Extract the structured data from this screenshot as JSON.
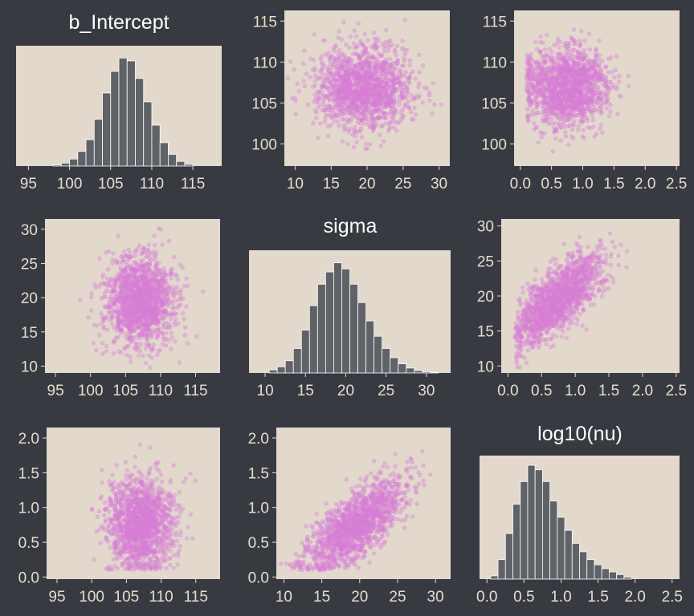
{
  "colors": {
    "background": "#373a40",
    "panel": "#e2d8cc",
    "histogram_bar": "#5f6368",
    "histogram_outline": "#ffffff",
    "scatter_point": "#d87ed6",
    "tick_text": "#e6ddd0",
    "title_text": "#ffffff"
  },
  "chart_data": [
    {
      "id": "p11",
      "type": "bar",
      "title": "b_Intercept",
      "x_ticks": [
        95,
        100,
        105,
        110,
        115
      ],
      "xlim": [
        93.5,
        118.5
      ],
      "grid": false,
      "bins": [
        {
          "x": 98.5,
          "count": 2
        },
        {
          "x": 99.5,
          "count": 5
        },
        {
          "x": 100.5,
          "count": 12
        },
        {
          "x": 101.5,
          "count": 25
        },
        {
          "x": 102.5,
          "count": 45
        },
        {
          "x": 103.5,
          "count": 80
        },
        {
          "x": 104.5,
          "count": 125
        },
        {
          "x": 105.5,
          "count": 162
        },
        {
          "x": 106.5,
          "count": 185
        },
        {
          "x": 107.5,
          "count": 180
        },
        {
          "x": 108.5,
          "count": 150
        },
        {
          "x": 109.5,
          "count": 110
        },
        {
          "x": 110.5,
          "count": 70
        },
        {
          "x": 111.5,
          "count": 40
        },
        {
          "x": 112.5,
          "count": 20
        },
        {
          "x": 113.5,
          "count": 8
        },
        {
          "x": 114.5,
          "count": 3
        }
      ],
      "count_max": 195
    },
    {
      "id": "p12",
      "type": "scatter",
      "x": "sigma",
      "y": "b_Intercept",
      "x_ticks": [
        10,
        15,
        20,
        25,
        30
      ],
      "y_ticks": [
        100,
        105,
        110,
        115
      ],
      "xlim": [
        8.5,
        31.5
      ],
      "ylim": [
        97.3,
        116.3
      ],
      "x_mean": 19.5,
      "x_sd": 3.2,
      "y_mean": 107,
      "y_sd": 2.4,
      "correlation": 0.0,
      "n": 1500,
      "seed": 7
    },
    {
      "id": "p13",
      "type": "scatter",
      "x": "log10(nu)",
      "y": "b_Intercept",
      "x_ticks": [
        0.0,
        0.5,
        1.0,
        1.5,
        2.0,
        2.5
      ],
      "y_ticks": [
        100,
        105,
        110,
        115
      ],
      "xlim": [
        -0.1,
        2.55
      ],
      "ylim": [
        97.3,
        116.3
      ],
      "x_mean": 0.75,
      "x_sd": 0.33,
      "x_min": 0.1,
      "y_mean": 107,
      "y_sd": 2.4,
      "correlation": 0.0,
      "n": 1500,
      "seed": 11
    },
    {
      "id": "p21",
      "type": "scatter",
      "x": "b_Intercept",
      "y": "sigma",
      "x_ticks": [
        95,
        100,
        105,
        110,
        115
      ],
      "y_ticks": [
        10,
        15,
        20,
        25,
        30
      ],
      "xlim": [
        93.5,
        118.5
      ],
      "ylim": [
        9.0,
        31.5
      ],
      "x_mean": 107,
      "x_sd": 2.4,
      "y_mean": 19.5,
      "y_sd": 3.2,
      "correlation": 0.0,
      "n": 1500,
      "seed": 23
    },
    {
      "id": "p22",
      "type": "bar",
      "title": "sigma",
      "x_ticks": [
        10,
        15,
        20,
        25,
        30
      ],
      "xlim": [
        8.0,
        33.0
      ],
      "grid": false,
      "bins": [
        {
          "x": 11,
          "count": 5
        },
        {
          "x": 12,
          "count": 10
        },
        {
          "x": 13,
          "count": 20
        },
        {
          "x": 14,
          "count": 40
        },
        {
          "x": 15,
          "count": 70
        },
        {
          "x": 16,
          "count": 110
        },
        {
          "x": 17,
          "count": 145
        },
        {
          "x": 18,
          "count": 165
        },
        {
          "x": 19,
          "count": 180
        },
        {
          "x": 20,
          "count": 170
        },
        {
          "x": 21,
          "count": 145
        },
        {
          "x": 22,
          "count": 115
        },
        {
          "x": 23,
          "count": 85
        },
        {
          "x": 24,
          "count": 60
        },
        {
          "x": 25,
          "count": 40
        },
        {
          "x": 26,
          "count": 25
        },
        {
          "x": 27,
          "count": 15
        },
        {
          "x": 28,
          "count": 8
        },
        {
          "x": 29,
          "count": 4
        },
        {
          "x": 30,
          "count": 2
        },
        {
          "x": 31,
          "count": 1
        }
      ],
      "count_max": 190
    },
    {
      "id": "p23",
      "type": "scatter",
      "x": "log10(nu)",
      "y": "sigma",
      "x_ticks": [
        0.0,
        0.5,
        1.0,
        1.5,
        2.0,
        2.5
      ],
      "y_ticks": [
        10,
        15,
        20,
        25,
        30
      ],
      "xlim": [
        -0.1,
        2.55
      ],
      "ylim": [
        9.0,
        31.0
      ],
      "x_mean": 0.75,
      "x_sd": 0.33,
      "x_min": 0.1,
      "y_mean": 19.5,
      "y_sd": 3.2,
      "correlation": 0.72,
      "n": 1500,
      "seed": 31
    },
    {
      "id": "p31",
      "type": "scatter",
      "x": "b_Intercept",
      "y": "log10(nu)",
      "x_ticks": [
        95,
        100,
        105,
        110,
        115
      ],
      "y_ticks": [
        0.0,
        0.5,
        1.0,
        1.5,
        2.0
      ],
      "xlim": [
        93.5,
        118.5
      ],
      "ylim": [
        -0.03,
        2.15
      ],
      "x_mean": 107,
      "x_sd": 2.4,
      "y_mean": 0.75,
      "y_sd": 0.33,
      "y_min": 0.1,
      "correlation": 0.0,
      "n": 1500,
      "seed": 43
    },
    {
      "id": "p32",
      "type": "scatter",
      "x": "sigma",
      "y": "log10(nu)",
      "x_ticks": [
        10,
        15,
        20,
        25,
        30
      ],
      "y_ticks": [
        0.0,
        0.5,
        1.0,
        1.5,
        2.0
      ],
      "xlim": [
        9.0,
        32.0
      ],
      "ylim": [
        -0.03,
        2.15
      ],
      "x_mean": 19.5,
      "x_sd": 3.2,
      "y_mean": 0.75,
      "y_sd": 0.33,
      "y_min": 0.1,
      "correlation": 0.72,
      "n": 1500,
      "seed": 53
    },
    {
      "id": "p33",
      "type": "bar",
      "title": "log10(nu)",
      "x_ticks": [
        0.0,
        0.5,
        1.0,
        1.5,
        2.0,
        2.5
      ],
      "xlim": [
        -0.1,
        2.6
      ],
      "grid": false,
      "bins": [
        {
          "x": 0.1,
          "count": 5
        },
        {
          "x": 0.2,
          "count": 30
        },
        {
          "x": 0.3,
          "count": 70
        },
        {
          "x": 0.4,
          "count": 115
        },
        {
          "x": 0.5,
          "count": 150
        },
        {
          "x": 0.6,
          "count": 175
        },
        {
          "x": 0.7,
          "count": 168
        },
        {
          "x": 0.8,
          "count": 150
        },
        {
          "x": 0.9,
          "count": 120
        },
        {
          "x": 1.0,
          "count": 95
        },
        {
          "x": 1.1,
          "count": 75
        },
        {
          "x": 1.2,
          "count": 55
        },
        {
          "x": 1.3,
          "count": 42
        },
        {
          "x": 1.4,
          "count": 30
        },
        {
          "x": 1.5,
          "count": 22
        },
        {
          "x": 1.6,
          "count": 16
        },
        {
          "x": 1.7,
          "count": 11
        },
        {
          "x": 1.8,
          "count": 7
        },
        {
          "x": 1.9,
          "count": 3
        }
      ],
      "count_max": 180
    }
  ]
}
